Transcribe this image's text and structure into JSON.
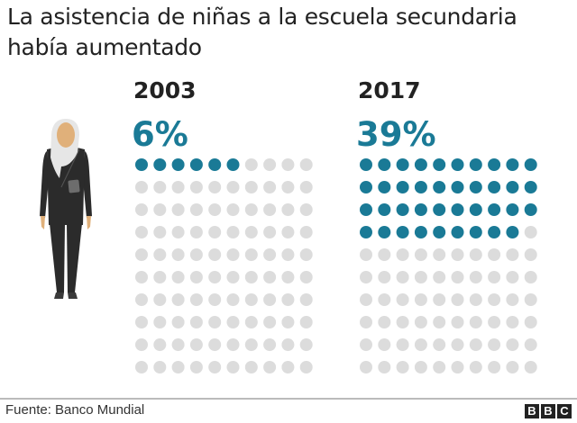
{
  "title": "La asistencia de niñas a la escuela secundaria había aumentado",
  "source": "Fuente: Banco Mundial",
  "logo": "BBC",
  "colors": {
    "filled": "#1a7a96",
    "empty": "#dcdcdc"
  },
  "chart_data": {
    "type": "waffle",
    "title": "La asistencia de niñas a la escuela secundaria había aumentado",
    "grid": [
      10,
      10
    ],
    "series": [
      {
        "name": "2003",
        "label": "6%",
        "value": 6
      },
      {
        "name": "2017",
        "label": "39%",
        "value": 39
      }
    ]
  }
}
